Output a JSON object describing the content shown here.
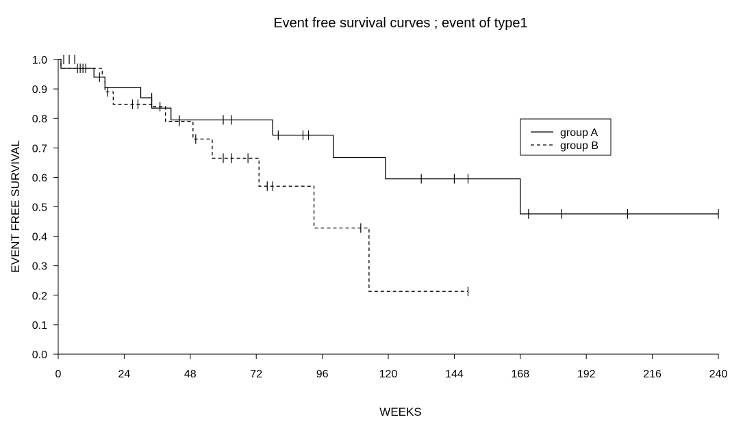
{
  "chart_data": {
    "type": "line",
    "title": "Event free survival curves ; event of type1",
    "xlabel": "WEEKS",
    "ylabel": "EVENT FREE SURVIVAL",
    "xlim": [
      0,
      240
    ],
    "ylim": [
      0,
      1.0
    ],
    "xticks": [
      0,
      24,
      48,
      72,
      96,
      120,
      144,
      168,
      192,
      216,
      240
    ],
    "xtick_labels": [
      "0",
      "24",
      "48",
      "72",
      "96",
      "120",
      "144",
      "168",
      "192",
      "216",
      "240"
    ],
    "yticks": [
      0.0,
      0.1,
      0.2,
      0.3,
      0.4,
      0.5,
      0.6,
      0.7,
      0.8,
      0.9,
      1.0
    ],
    "ytick_labels": [
      "0.0",
      "0.1",
      "0.2",
      "0.3",
      "0.4",
      "0.5",
      "0.6",
      "0.7",
      "0.8",
      "0.9",
      "1.0"
    ],
    "grid": false,
    "legend_position": "right",
    "series": [
      {
        "name": "group A",
        "style": "solid",
        "color": "#000000",
        "steps": [
          [
            0,
            1.0
          ],
          [
            1,
            0.97
          ],
          [
            13,
            0.94
          ],
          [
            17,
            0.905
          ],
          [
            30,
            0.87
          ],
          [
            34,
            0.835
          ],
          [
            41,
            0.795
          ],
          [
            78,
            0.743
          ],
          [
            100,
            0.667
          ],
          [
            119,
            0.595
          ],
          [
            168,
            0.476
          ],
          [
            240,
            0.476
          ]
        ],
        "censored": [
          [
            2,
            1.0
          ],
          [
            4,
            1.0
          ],
          [
            6,
            1.0
          ],
          [
            7,
            0.97
          ],
          [
            9,
            0.97
          ],
          [
            10,
            0.97
          ],
          [
            34,
            0.87
          ],
          [
            44,
            0.795
          ],
          [
            60,
            0.795
          ],
          [
            63,
            0.795
          ],
          [
            80,
            0.743
          ],
          [
            89,
            0.743
          ],
          [
            91,
            0.743
          ],
          [
            132,
            0.595
          ],
          [
            144,
            0.595
          ],
          [
            149,
            0.595
          ],
          [
            171,
            0.476
          ],
          [
            183,
            0.476
          ],
          [
            207,
            0.476
          ],
          [
            240,
            0.476
          ]
        ]
      },
      {
        "name": "group B",
        "style": "dashed",
        "color": "#000000",
        "steps": [
          [
            0,
            1.0
          ],
          [
            1,
            0.97
          ],
          [
            16,
            0.94
          ],
          [
            17,
            0.89
          ],
          [
            20,
            0.848
          ],
          [
            34,
            0.84
          ],
          [
            39,
            0.79
          ],
          [
            49,
            0.73
          ],
          [
            56,
            0.665
          ],
          [
            73,
            0.57
          ],
          [
            93,
            0.428
          ],
          [
            113,
            0.213
          ],
          [
            149,
            0.213
          ]
        ],
        "censored": [
          [
            8,
            0.97
          ],
          [
            15,
            0.94
          ],
          [
            18,
            0.89
          ],
          [
            27,
            0.848
          ],
          [
            29,
            0.848
          ],
          [
            37,
            0.84
          ],
          [
            44,
            0.79
          ],
          [
            50,
            0.73
          ],
          [
            60,
            0.665
          ],
          [
            63,
            0.665
          ],
          [
            69,
            0.665
          ],
          [
            76,
            0.57
          ],
          [
            78,
            0.57
          ],
          [
            110,
            0.428
          ],
          [
            149,
            0.213
          ]
        ]
      }
    ]
  }
}
